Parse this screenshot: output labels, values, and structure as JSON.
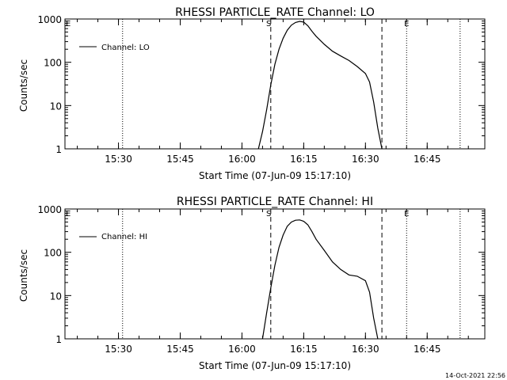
{
  "footer": {
    "timestamp": "14-Oct-2021 22:56"
  },
  "chart_data": [
    {
      "type": "line",
      "title": "RHESSI PARTICLE_RATE Channel: LO",
      "xlabel": "Start Time (07-Jun-09 15:17:10)",
      "ylabel": "Counts/sec",
      "yscale": "log",
      "ylim": [
        1,
        1000
      ],
      "xlim_minutes": [
        15.3,
        16.95
      ],
      "x_ticks": [
        "15:30",
        "15:45",
        "16:00",
        "16:15",
        "16:30",
        "16:45"
      ],
      "y_ticks": [
        "1",
        "10",
        "100",
        "1000"
      ],
      "legend": {
        "label": "Channel: LO",
        "placement": "top-left"
      },
      "markers": [
        {
          "label": "S",
          "time": "16:06.5",
          "style": "dashed"
        },
        {
          "label": "E",
          "time": "16:40",
          "style": "dotted"
        }
      ],
      "vlines_dotted": [
        "15:31",
        "16:40",
        "16:53"
      ],
      "vlines_dashed": [
        "16:07",
        "16:34"
      ],
      "series": [
        {
          "name": "Channel: LO",
          "x": [
            "16:04",
            "16:05",
            "16:06",
            "16:07",
            "16:08",
            "16:09",
            "16:10",
            "16:11",
            "16:12",
            "16:13",
            "16:14",
            "16:15",
            "16:16",
            "16:17",
            "16:18",
            "16:20",
            "16:22",
            "16:24",
            "16:26",
            "16:28",
            "16:30",
            "16:31",
            "16:32",
            "16:33",
            "16:34"
          ],
          "values": [
            1,
            2.5,
            8,
            30,
            90,
            200,
            360,
            550,
            720,
            830,
            880,
            850,
            700,
            520,
            400,
            260,
            180,
            140,
            110,
            80,
            55,
            35,
            12,
            3,
            1
          ]
        }
      ]
    },
    {
      "type": "line",
      "title": "RHESSI PARTICLE_RATE Channel: HI",
      "xlabel": "Start Time (07-Jun-09 15:17:10)",
      "ylabel": "Counts/sec",
      "yscale": "log",
      "ylim": [
        1,
        1000
      ],
      "xlim_minutes": [
        15.3,
        16.95
      ],
      "x_ticks": [
        "15:30",
        "15:45",
        "16:00",
        "16:15",
        "16:30",
        "16:45"
      ],
      "y_ticks": [
        "1",
        "10",
        "100",
        "1000"
      ],
      "legend": {
        "label": "Channel: HI",
        "placement": "top-left"
      },
      "markers": [
        {
          "label": "S",
          "time": "16:06.5",
          "style": "dashed"
        },
        {
          "label": "E",
          "time": "16:40",
          "style": "dotted"
        }
      ],
      "vlines_dotted": [
        "15:31",
        "16:40",
        "16:53"
      ],
      "vlines_dashed": [
        "16:07",
        "16:34"
      ],
      "series": [
        {
          "name": "Channel: HI",
          "x": [
            "16:05",
            "16:06",
            "16:07",
            "16:08",
            "16:09",
            "16:10",
            "16:11",
            "16:12",
            "16:13",
            "16:14",
            "16:15",
            "16:16",
            "16:17",
            "16:18",
            "16:20",
            "16:22",
            "16:24",
            "16:26",
            "16:28",
            "16:30",
            "16:31",
            "16:32",
            "16:33"
          ],
          "values": [
            1,
            4,
            15,
            50,
            130,
            250,
            400,
            500,
            550,
            560,
            520,
            430,
            300,
            200,
            110,
            60,
            40,
            30,
            28,
            22,
            12,
            3,
            1
          ]
        }
      ]
    }
  ]
}
